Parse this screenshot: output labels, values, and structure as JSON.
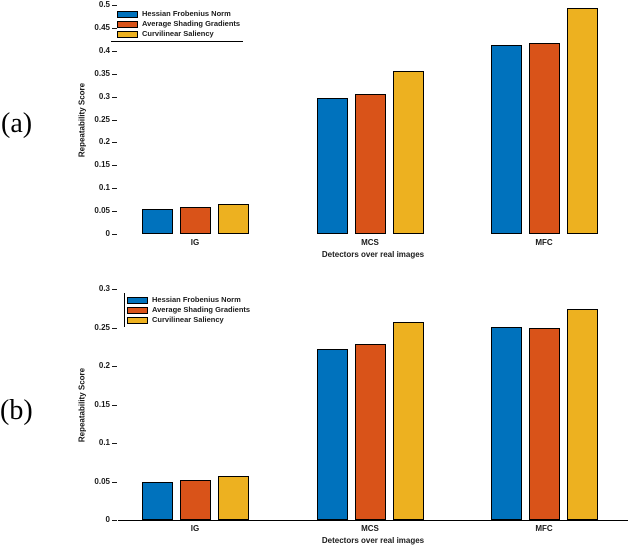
{
  "figure": {
    "panels": [
      {
        "label": "(a)",
        "chart_data": {
          "type": "bar",
          "title": "",
          "categories": [
            "IG",
            "MCS",
            "MFC"
          ],
          "series": [
            {
              "name": "Hessian Frobenius Norm",
              "color": "#0072BD",
              "values": [
                0.054,
                0.298,
                0.413
              ]
            },
            {
              "name": "Average Shading Gradients",
              "color": "#D95319",
              "values": [
                0.058,
                0.305,
                0.418
              ]
            },
            {
              "name": "Curvilinear Saliency",
              "color": "#EDB120",
              "values": [
                0.065,
                0.355,
                0.493
              ]
            }
          ],
          "xlabel": "Detectors over real images",
          "ylabel": "Repeatability Score",
          "ylim": [
            0,
            0.5
          ],
          "ytick_step": 0.05,
          "legend_position": "top-left",
          "grid": false,
          "x_axis_line": false
        }
      },
      {
        "label": "(b)",
        "chart_data": {
          "type": "bar",
          "title": "",
          "categories": [
            "IG",
            "MCS",
            "MFC"
          ],
          "series": [
            {
              "name": "Hessian Frobenius Norm",
              "color": "#0072BD",
              "values": [
                0.049,
                0.222,
                0.251
              ]
            },
            {
              "name": "Average Shading Gradients",
              "color": "#D95319",
              "values": [
                0.052,
                0.228,
                0.249
              ]
            },
            {
              "name": "Curvilinear Saliency",
              "color": "#EDB120",
              "values": [
                0.057,
                0.257,
                0.274
              ]
            }
          ],
          "xlabel": "Detectors over real images",
          "ylabel": "Repeatability Score",
          "ylim": [
            0,
            0.3
          ],
          "ytick_step": 0.05,
          "legend_position": "top-left",
          "grid": false,
          "x_axis_line": true
        }
      }
    ]
  }
}
